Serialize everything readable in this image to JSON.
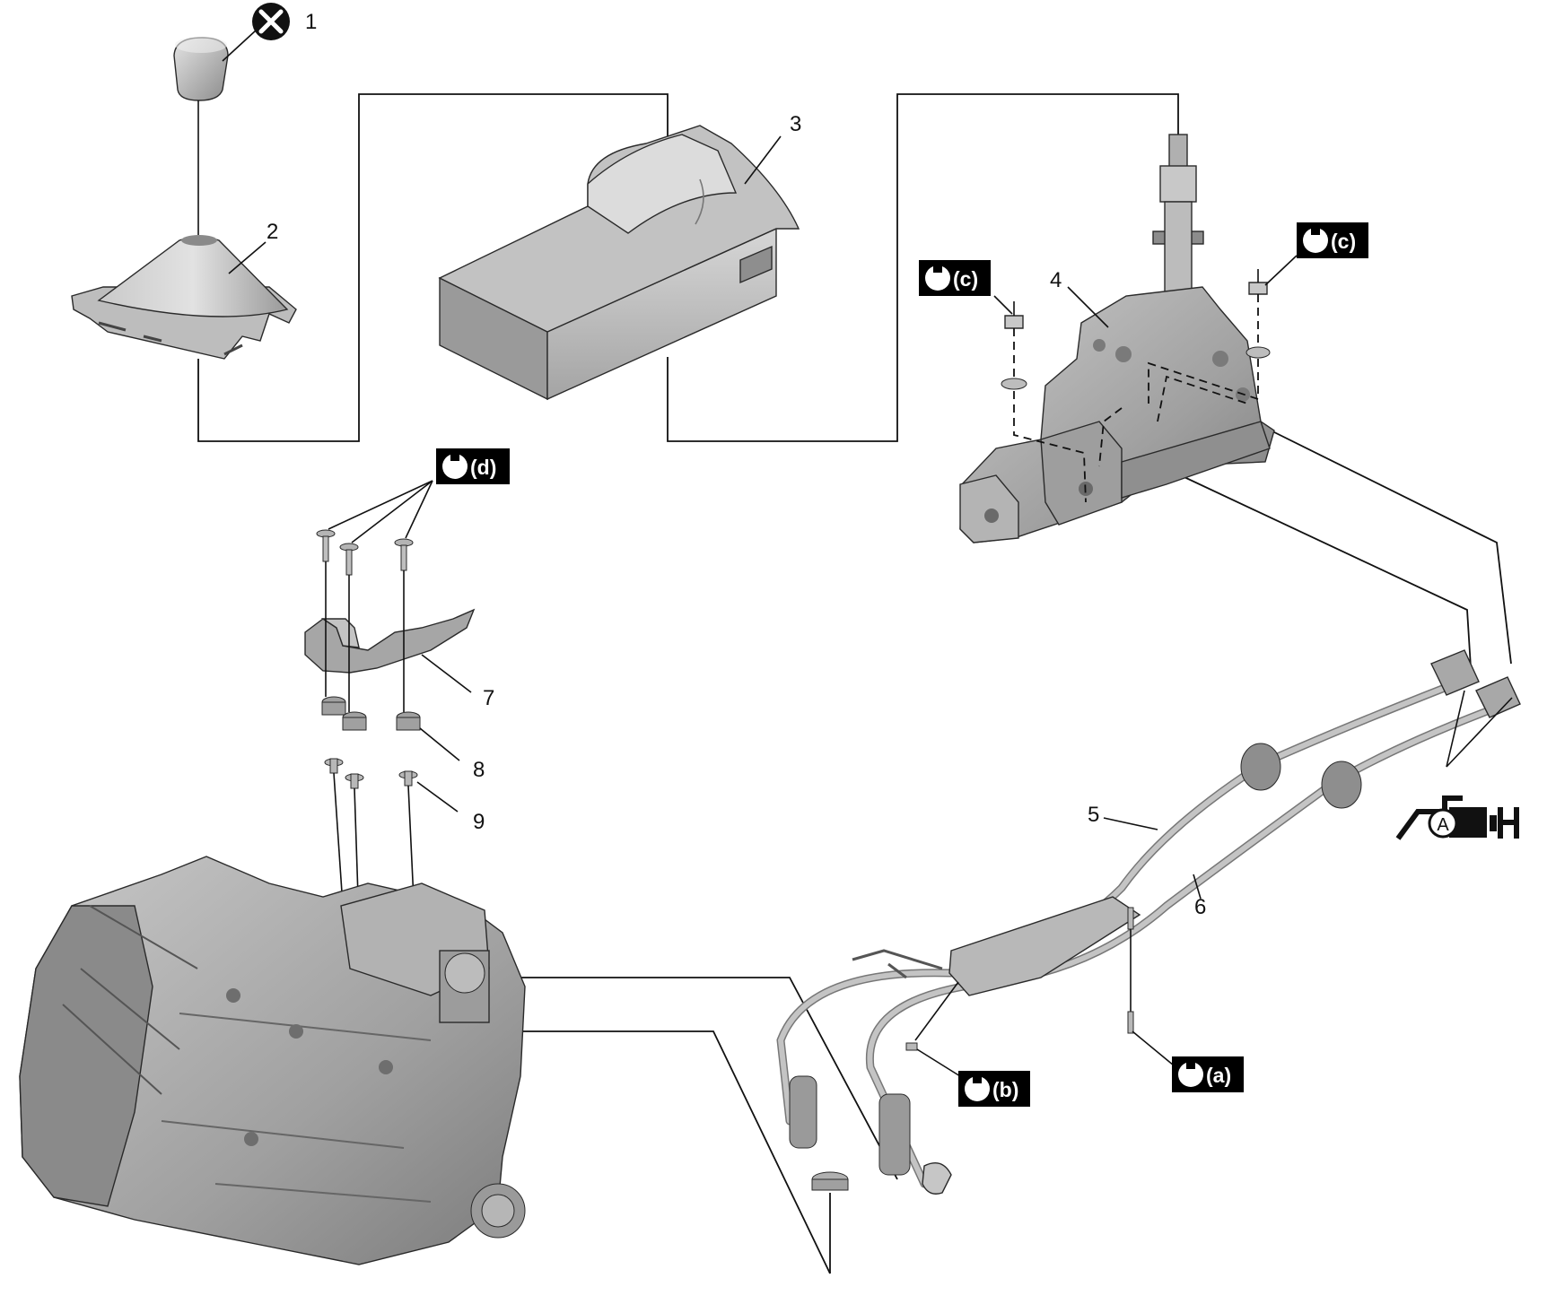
{
  "callouts": [
    "1",
    "2",
    "3",
    "4",
    "5",
    "6",
    "7",
    "8",
    "9"
  ],
  "torque_tags": {
    "a": "(a)",
    "b": "(b)",
    "c": "(c)",
    "d": "(d)"
  },
  "lube_symbol_letter": "A",
  "icons": {
    "do_not_reuse": "do-not-reuse-icon",
    "torque": "wrench-icon",
    "lubricant": "grease-gun-icon"
  },
  "colors": {
    "line": "#111111",
    "part_light": "#d2d2d2",
    "part_mid": "#a8a8a8",
    "part_dark": "#6e6e6e",
    "tag_bg": "#000000"
  }
}
